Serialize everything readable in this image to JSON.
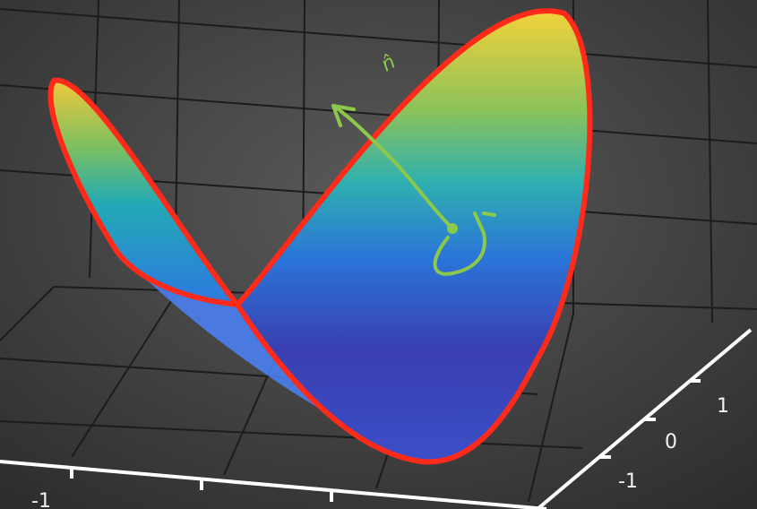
{
  "axis_ticks": {
    "depth": [
      "1",
      "0",
      "-1"
    ],
    "horizontal": [
      "-1"
    ]
  },
  "annotation": "n̂"
}
